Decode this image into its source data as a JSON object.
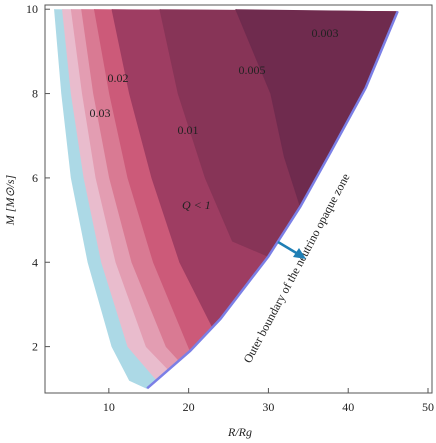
{
  "chart_data": {
    "type": "contour",
    "xlabel": "R/Rg",
    "ylabel": "M [M⊙/s]",
    "xlim": [
      2,
      50.5
    ],
    "ylim": [
      0.9,
      10.1
    ],
    "xticks": [
      10,
      20,
      30,
      40,
      50
    ],
    "yticks": [
      2,
      4,
      6,
      8,
      10
    ],
    "boundary": {
      "color": "#7b7fe6",
      "x": [
        14.8,
        20.2,
        24.0,
        30.0,
        34.0,
        37.8,
        42.2,
        46.2
      ],
      "y": [
        1.01,
        1.9,
        2.66,
        4.14,
        5.32,
        6.61,
        8.14,
        9.95
      ]
    },
    "regions": [
      {
        "color": "#acd9e6",
        "x": [
          14.8,
          12.6,
          10.4,
          7.4,
          5.3,
          4.1,
          3.2
        ],
        "y": [
          1.01,
          1.2,
          2,
          4,
          6,
          8,
          10
        ]
      },
      {
        "color": "#e9bccd",
        "x": [
          16.0,
          12.4,
          9.1,
          6.9,
          5.3,
          4.2
        ],
        "y": [
          1.21,
          2,
          4,
          6,
          8,
          10
        ]
      },
      {
        "color": "#e39db2",
        "x": [
          17.5,
          14.7,
          10.9,
          8.4,
          6.7,
          5.3
        ],
        "y": [
          1.45,
          2,
          4,
          6,
          8,
          10
        ]
      },
      {
        "color": "#d97a93",
        "level": 0.03,
        "x": [
          18.8,
          17.2,
          12.9,
          10.1,
          8.1,
          6.6
        ],
        "y": [
          1.67,
          2,
          4,
          6,
          8,
          10
        ]
      },
      {
        "color": "#cc5a79",
        "level": 0.02,
        "x": [
          20.2,
          15.6,
          12.4,
          10.1,
          8.2
        ],
        "y": [
          1.9,
          4,
          6,
          8,
          10
        ]
      },
      {
        "color": "#9e3d62",
        "level": 0.01,
        "x": [
          23.0,
          18.9,
          15.4,
          12.6,
          10.4
        ],
        "y": [
          2.46,
          4,
          6,
          8,
          10
        ]
      },
      {
        "color": "#873457",
        "level": 0.005,
        "x": [
          30.0,
          25.5,
          22.1,
          18.7,
          16.4
        ],
        "y": [
          4.14,
          4.5,
          6,
          8,
          10
        ]
      },
      {
        "color": "#6f2b4e",
        "level": 0.003,
        "x": [
          34.0,
          32.0,
          30.3,
          25.9
        ],
        "y": [
          5.32,
          6.5,
          8,
          10
        ]
      }
    ],
    "annotations": [
      "Q < 1",
      "Outer boundary of the neutrino opaque zone"
    ]
  }
}
